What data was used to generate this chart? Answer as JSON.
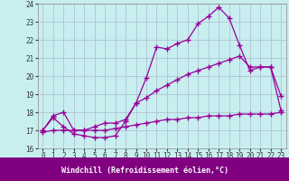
{
  "xlabel": "Windchill (Refroidissement éolien,°C)",
  "bg_color": "#c8eef0",
  "label_bar_color": "#800080",
  "line_color": "#990099",
  "grid_color": "#aabbcc",
  "xlim": [
    -0.5,
    23.5
  ],
  "ylim": [
    16,
    24
  ],
  "yticks": [
    16,
    17,
    18,
    19,
    20,
    21,
    22,
    23,
    24
  ],
  "xticks": [
    0,
    1,
    2,
    3,
    4,
    5,
    6,
    7,
    8,
    9,
    10,
    11,
    12,
    13,
    14,
    15,
    16,
    17,
    18,
    19,
    20,
    21,
    22,
    23
  ],
  "line1_x": [
    0,
    1,
    2,
    3,
    4,
    5,
    6,
    7,
    8,
    9,
    10,
    11,
    12,
    13,
    14,
    15,
    16,
    17,
    18,
    19,
    20,
    21,
    22,
    23
  ],
  "line1_y": [
    17.0,
    17.7,
    17.2,
    16.8,
    16.7,
    16.6,
    16.6,
    16.7,
    17.5,
    18.5,
    19.9,
    21.6,
    21.5,
    21.8,
    22.0,
    22.9,
    23.3,
    23.8,
    23.2,
    21.7,
    20.3,
    20.5,
    20.5,
    18.9
  ],
  "line2_x": [
    0,
    1,
    2,
    3,
    4,
    5,
    6,
    7,
    8,
    9,
    10,
    11,
    12,
    13,
    14,
    15,
    16,
    17,
    18,
    19,
    20,
    21,
    22,
    23
  ],
  "line2_y": [
    17.0,
    17.8,
    18.0,
    17.0,
    17.0,
    17.2,
    17.4,
    17.4,
    17.6,
    18.5,
    18.8,
    19.2,
    19.5,
    19.8,
    20.1,
    20.3,
    20.5,
    20.7,
    20.9,
    21.1,
    20.5,
    20.5,
    20.5,
    18.1
  ],
  "line3_x": [
    0,
    1,
    2,
    3,
    4,
    5,
    6,
    7,
    8,
    9,
    10,
    11,
    12,
    13,
    14,
    15,
    16,
    17,
    18,
    19,
    20,
    21,
    22,
    23
  ],
  "line3_y": [
    16.9,
    17.0,
    17.0,
    17.0,
    17.0,
    17.0,
    17.0,
    17.1,
    17.2,
    17.3,
    17.4,
    17.5,
    17.6,
    17.6,
    17.7,
    17.7,
    17.8,
    17.8,
    17.8,
    17.9,
    17.9,
    17.9,
    17.9,
    18.0
  ]
}
